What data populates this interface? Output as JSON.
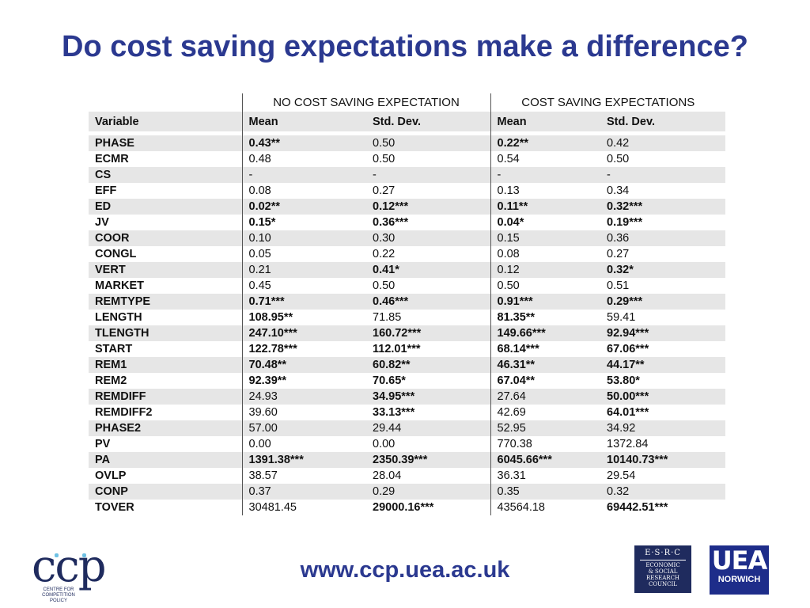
{
  "title": "Do cost saving expectations make a difference?",
  "table": {
    "group_left": "NO COST SAVING EXPECTATION",
    "group_right": "COST SAVING EXPECTATIONS",
    "col_headers": [
      "Variable",
      "Mean",
      "Std. Dev.",
      "Mean",
      "Std. Dev."
    ],
    "rows": [
      {
        "var": "PHASE",
        "v": [
          "0.43**",
          "0.50",
          "0.22**",
          "0.42"
        ],
        "b": [
          true,
          false,
          true,
          false
        ]
      },
      {
        "var": "ECMR",
        "v": [
          "0.48",
          "0.50",
          "0.54",
          "0.50"
        ],
        "b": [
          false,
          false,
          false,
          false
        ]
      },
      {
        "var": "CS",
        "v": [
          "-",
          "-",
          "-",
          "-"
        ],
        "b": [
          false,
          false,
          false,
          false
        ]
      },
      {
        "var": "EFF",
        "v": [
          "0.08",
          "0.27",
          "0.13",
          "0.34"
        ],
        "b": [
          false,
          false,
          false,
          false
        ]
      },
      {
        "var": "ED",
        "v": [
          "0.02**",
          "0.12***",
          "0.11**",
          "0.32***"
        ],
        "b": [
          true,
          true,
          true,
          true
        ]
      },
      {
        "var": "JV",
        "v": [
          "0.15*",
          "0.36***",
          "0.04*",
          "0.19***"
        ],
        "b": [
          true,
          true,
          true,
          true
        ]
      },
      {
        "var": "COOR",
        "v": [
          "0.10",
          "0.30",
          "0.15",
          "0.36"
        ],
        "b": [
          false,
          false,
          false,
          false
        ]
      },
      {
        "var": "CONGL",
        "v": [
          "0.05",
          "0.22",
          "0.08",
          "0.27"
        ],
        "b": [
          false,
          false,
          false,
          false
        ]
      },
      {
        "var": "VERT",
        "v": [
          "0.21",
          "0.41*",
          "0.12",
          "0.32*"
        ],
        "b": [
          false,
          true,
          false,
          true
        ]
      },
      {
        "var": "MARKET",
        "v": [
          "0.45",
          "0.50",
          "0.50",
          "0.51"
        ],
        "b": [
          false,
          false,
          false,
          false
        ]
      },
      {
        "var": "REMTYPE",
        "v": [
          "0.71***",
          "0.46***",
          "0.91***",
          "0.29***"
        ],
        "b": [
          true,
          true,
          true,
          true
        ]
      },
      {
        "var": "LENGTH",
        "v": [
          "108.95**",
          "71.85",
          "81.35**",
          "59.41"
        ],
        "b": [
          true,
          false,
          true,
          false
        ]
      },
      {
        "var": "TLENGTH",
        "v": [
          "247.10***",
          "160.72***",
          "149.66***",
          "92.94***"
        ],
        "b": [
          true,
          true,
          true,
          true
        ]
      },
      {
        "var": "START",
        "v": [
          "122.78***",
          "112.01***",
          "68.14***",
          "67.06***"
        ],
        "b": [
          true,
          true,
          true,
          true
        ]
      },
      {
        "var": "REM1",
        "v": [
          "70.48**",
          "60.82**",
          "46.31**",
          "44.17**"
        ],
        "b": [
          true,
          true,
          true,
          true
        ]
      },
      {
        "var": "REM2",
        "v": [
          "92.39**",
          "70.65*",
          "67.04**",
          "53.80*"
        ],
        "b": [
          true,
          true,
          true,
          true
        ]
      },
      {
        "var": "REMDIFF",
        "v": [
          "24.93",
          "34.95***",
          "27.64",
          "50.00***"
        ],
        "b": [
          false,
          true,
          false,
          true
        ]
      },
      {
        "var": "REMDIFF2",
        "v": [
          "39.60",
          "33.13***",
          "42.69",
          "64.01***"
        ],
        "b": [
          false,
          true,
          false,
          true
        ]
      },
      {
        "var": "PHASE2",
        "v": [
          "57.00",
          "29.44",
          "52.95",
          "34.92"
        ],
        "b": [
          false,
          false,
          false,
          false
        ]
      },
      {
        "var": "PV",
        "v": [
          "0.00",
          "0.00",
          "770.38",
          "1372.84"
        ],
        "b": [
          false,
          false,
          false,
          false
        ]
      },
      {
        "var": "PA",
        "v": [
          "1391.38***",
          "2350.39***",
          "6045.66***",
          "10140.73***"
        ],
        "b": [
          true,
          true,
          true,
          true
        ]
      },
      {
        "var": "OVLP",
        "v": [
          "38.57",
          "28.04",
          "36.31",
          "29.54"
        ],
        "b": [
          false,
          false,
          false,
          false
        ]
      },
      {
        "var": "CONP",
        "v": [
          "0.37",
          "0.29",
          "0.35",
          "0.32"
        ],
        "b": [
          false,
          false,
          false,
          false
        ]
      },
      {
        "var": "TOVER",
        "v": [
          "30481.45",
          "29000.16***",
          "43564.18",
          "69442.51***"
        ],
        "b": [
          false,
          true,
          false,
          true
        ]
      }
    ]
  },
  "footer": {
    "url": "www.ccp.uea.ac.uk",
    "ccp_logo": "ccp",
    "ccp_sub": "CENTRE FOR COMPETITION POLICY",
    "esrc_top": "E·S·R·C",
    "esrc_lines": [
      "ECONOMIC",
      "& SOCIAL",
      "RESEARCH",
      "COUNCIL"
    ],
    "uea_big": "UEA",
    "uea_small": "NORWICH"
  },
  "colors": {
    "title": "#2b3990",
    "stripe": "#e6e6e6",
    "logo_navy": "#1f2b5e",
    "uea_blue": "#1e2d8a"
  }
}
